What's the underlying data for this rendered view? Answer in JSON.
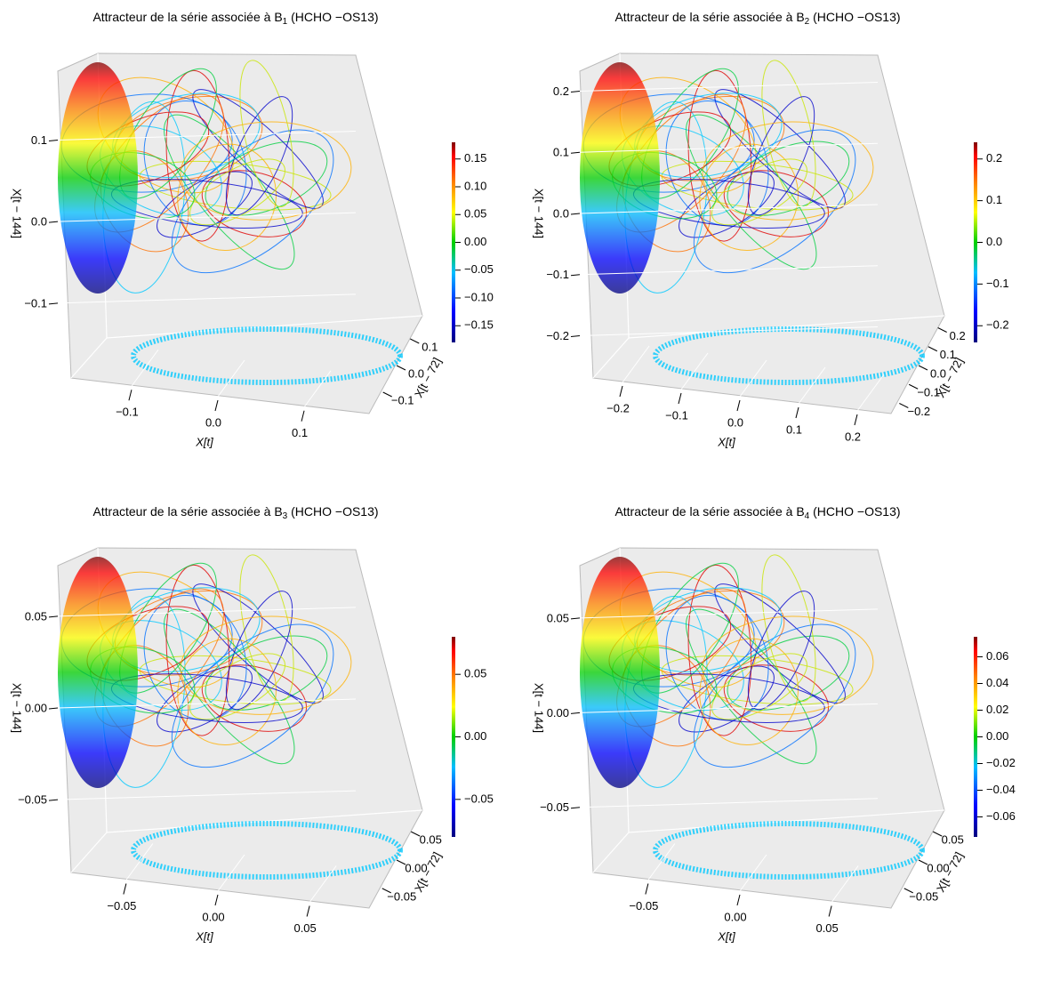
{
  "chart_data": [
    {
      "type": "scatter3d",
      "title_prefix": "Attracteur de la série associée à  B",
      "title_subscript": "1",
      "title_suffix": "  (HCHO −OS13)",
      "x_label": "X[t]",
      "y_label": "X[t − 72]",
      "z_label": "X[t − 144]",
      "xlim": [
        -0.17,
        0.17
      ],
      "xticks": [
        {
          "value": -0.1,
          "label": "−0.1"
        },
        {
          "value": 0.0,
          "label": "0.0"
        },
        0.1
      ],
      "ylim": [
        -0.17,
        0.17
      ],
      "yticks": [
        {
          "value": -0.1,
          "label": "−0.1"
        },
        {
          "value": 0.0,
          "label": "0.0"
        },
        0.1
      ],
      "zlim": [
        -0.17,
        0.19
      ],
      "zticks": [
        {
          "value": -0.1,
          "label": "−0.1"
        },
        {
          "value": 0.0,
          "label": "0.0"
        },
        0.1
      ],
      "colorbar": {
        "lim": [
          -0.18,
          0.18
        ],
        "ticks": [
          {
            "value": 0.15,
            "label": "0.15"
          },
          {
            "value": 0.1,
            "label": "0.10"
          },
          0.05,
          {
            "value": 0.0,
            "label": "0.00"
          },
          {
            "value": -0.05,
            "label": "−0.05"
          },
          {
            "value": -0.1,
            "label": "−0.10"
          },
          {
            "value": -0.15,
            "label": "−0.15"
          }
        ]
      }
    },
    {
      "type": "scatter3d",
      "title_prefix": "Attracteur de la série associée à  B",
      "title_subscript": "2",
      "title_suffix": "  (HCHO −OS13)",
      "x_label": "X[t]",
      "y_label": "X[t − 72]",
      "z_label": "X[t − 144]",
      "xlim": [
        -0.25,
        0.25
      ],
      "xticks": [
        {
          "value": -0.2,
          "label": "−0.2"
        },
        {
          "value": -0.1,
          "label": "−0.1"
        },
        {
          "value": 0.0,
          "label": "0.0"
        },
        0.1,
        0.2
      ],
      "ylim": [
        -0.24,
        0.24
      ],
      "yticks": [
        {
          "value": -0.2,
          "label": "−0.2"
        },
        {
          "value": -0.1,
          "label": "−0.1"
        },
        {
          "value": 0.0,
          "label": "0.0"
        },
        0.1,
        0.2
      ],
      "zlim": [
        -0.24,
        0.24
      ],
      "zticks": [
        {
          "value": -0.2,
          "label": "−0.2"
        },
        {
          "value": -0.1,
          "label": "−0.1"
        },
        {
          "value": 0.0,
          "label": "0.0"
        },
        0.1,
        0.2
      ],
      "colorbar": {
        "lim": [
          -0.24,
          0.24
        ],
        "ticks": [
          0.2,
          0.1,
          {
            "value": 0.0,
            "label": "0.0"
          },
          {
            "value": -0.1,
            "label": "−0.1"
          },
          {
            "value": -0.2,
            "label": "−0.2"
          }
        ]
      }
    },
    {
      "type": "scatter3d",
      "title_prefix": "Attracteur de la série associée à  B",
      "title_subscript": "3",
      "title_suffix": "  (HCHO −OS13)",
      "x_label": "X[t]",
      "y_label": "X[t − 72]",
      "z_label": "X[t − 144]",
      "xlim": [
        -0.08,
        0.08
      ],
      "xticks": [
        {
          "value": -0.05,
          "label": "−0.05"
        },
        {
          "value": 0.0,
          "label": "0.00"
        },
        0.05
      ],
      "ylim": [
        -0.08,
        0.08
      ],
      "yticks": [
        {
          "value": -0.05,
          "label": "−0.05"
        },
        {
          "value": 0.0,
          "label": "0.00"
        },
        0.05
      ],
      "zlim": [
        -0.08,
        0.08
      ],
      "zticks": [
        {
          "value": -0.05,
          "label": "−0.05"
        },
        {
          "value": 0.0,
          "label": "0.00"
        },
        0.05
      ],
      "colorbar": {
        "lim": [
          -0.08,
          0.08
        ],
        "ticks": [
          0.05,
          {
            "value": 0.0,
            "label": "0.00"
          },
          {
            "value": -0.05,
            "label": "−0.05"
          }
        ]
      }
    },
    {
      "type": "scatter3d",
      "title_prefix": "Attracteur de la série associée à  B",
      "title_subscript": "4",
      "title_suffix": "  (HCHO −OS13)",
      "x_label": "X[t]",
      "y_label": "X[t − 72]",
      "z_label": "X[t − 144]",
      "xlim": [
        -0.08,
        0.08
      ],
      "xticks": [
        {
          "value": -0.05,
          "label": "−0.05"
        },
        {
          "value": 0.0,
          "label": "0.00"
        },
        0.05
      ],
      "ylim": [
        -0.08,
        0.08
      ],
      "yticks": [
        {
          "value": -0.05,
          "label": "−0.05"
        },
        {
          "value": 0.0,
          "label": "0.00"
        },
        0.05
      ],
      "zlim": [
        -0.075,
        0.08
      ],
      "zticks": [
        {
          "value": -0.05,
          "label": "−0.05"
        },
        {
          "value": 0.0,
          "label": "0.00"
        },
        0.05
      ],
      "colorbar": {
        "lim": [
          -0.075,
          0.075
        ],
        "ticks": [
          0.06,
          0.04,
          0.02,
          {
            "value": 0.0,
            "label": "0.00"
          },
          {
            "value": -0.02,
            "label": "−0.02"
          },
          {
            "value": -0.04,
            "label": "−0.04"
          },
          {
            "value": -0.06,
            "label": "−0.06"
          }
        ]
      }
    }
  ]
}
